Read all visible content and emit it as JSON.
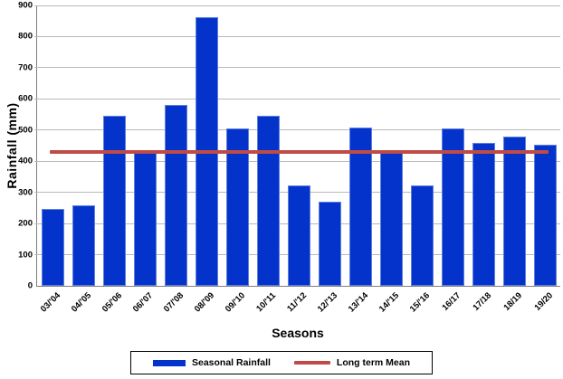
{
  "chart_data": {
    "type": "bar",
    "title": "",
    "xlabel": "Seasons",
    "ylabel": "Rainfall  (mm)",
    "ylim": [
      0,
      900
    ],
    "ytick_step": 100,
    "grid": true,
    "legend_position": "bottom",
    "categories": [
      "03/'04",
      "04/'05",
      "05/'06",
      "06/'07",
      "07/'08",
      "08/'09",
      "09/'10",
      "10/'11",
      "11/'12",
      "12/'13",
      "13/'14",
      "14/'15",
      "15/'16",
      "16/17",
      "17/18",
      "18/19",
      "19/20"
    ],
    "series": [
      {
        "name": "Seasonal Rainfall",
        "type": "bar",
        "color": "#0433cb",
        "values": [
          248,
          258,
          545,
          428,
          582,
          862,
          505,
          545,
          322,
          270,
          508,
          430,
          323,
          505,
          460,
          480,
          452
        ]
      },
      {
        "name": "Long term Mean",
        "type": "line",
        "color": "#bf4b47",
        "value": 430
      }
    ]
  },
  "colors": {
    "bar": "#0433cb",
    "mean_line": "#bf4b47",
    "gridline": "#b9b9b9",
    "axis": "#7f7f7f",
    "text": "#000000",
    "background": "#ffffff"
  }
}
